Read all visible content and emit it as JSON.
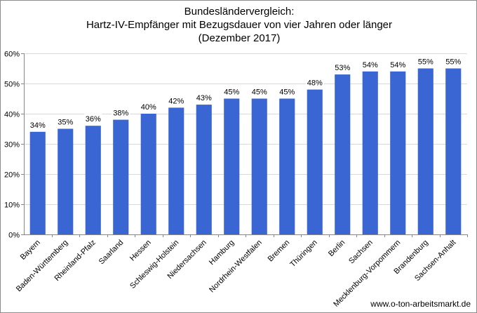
{
  "chart_data": {
    "type": "bar",
    "title_lines": [
      "Bundesländervergleich:",
      "Hartz-IV-Empfänger mit Bezugsdauer von vier Jahren oder länger",
      "(Dezember 2017)"
    ],
    "categories": [
      "Bayern",
      "Baden-Württemberg",
      "Rheinland-Pfalz",
      "Saarland",
      "Hessen",
      "Schleswig-Holstein",
      "Niedersachsen",
      "Hamburg",
      "Nordrhein-Westfalen",
      "Bremen",
      "Thüringen",
      "Berlin",
      "Sachsen",
      "Mecklenburg-Vorpommern",
      "Brandenburg",
      "Sachsen-Anhalt"
    ],
    "values": [
      34,
      35,
      36,
      38,
      40,
      42,
      43,
      45,
      45,
      45,
      48,
      53,
      54,
      54,
      55,
      55
    ],
    "value_labels": [
      "34%",
      "35%",
      "36%",
      "38%",
      "40%",
      "42%",
      "43%",
      "45%",
      "45%",
      "45%",
      "48%",
      "53%",
      "54%",
      "54%",
      "55%",
      "55%"
    ],
    "ylim": [
      0,
      60
    ],
    "yticks": [
      0,
      10,
      20,
      30,
      40,
      50,
      60
    ],
    "ytick_labels": [
      "0%",
      "10%",
      "20%",
      "30%",
      "40%",
      "50%",
      "60%"
    ],
    "xlabel": "",
    "ylabel": "",
    "grid": true,
    "legend": "none",
    "bar_color": "#3a66d4"
  },
  "source": "www.o-ton-arbeitsmarkt.de"
}
